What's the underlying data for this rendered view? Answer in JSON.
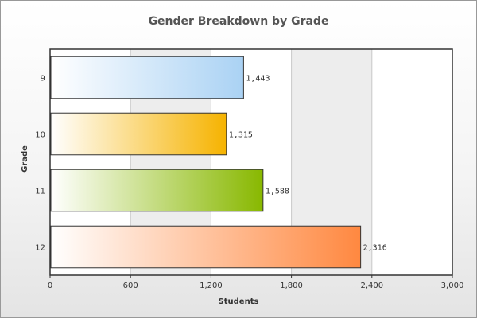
{
  "chart_data": {
    "type": "bar",
    "orientation": "horizontal",
    "title": "Gender Breakdown by Grade",
    "xlabel": "Students",
    "ylabel": "Grade",
    "categories": [
      "9",
      "10",
      "11",
      "12"
    ],
    "values": [
      1443,
      1315,
      1588,
      2316
    ],
    "value_labels": [
      "1,443",
      "1,315",
      "1,588",
      "2,316"
    ],
    "xlim": [
      0,
      3000
    ],
    "xticks": [
      0,
      600,
      1200,
      1800,
      2400,
      3000
    ],
    "xtick_labels": [
      "0",
      "600",
      "1,200",
      "1,800",
      "2,400",
      "3,000"
    ],
    "grid": true,
    "legend": "none",
    "colors": [
      "#aad2f4",
      "#f6b300",
      "#88b800",
      "#ff8840"
    ]
  }
}
